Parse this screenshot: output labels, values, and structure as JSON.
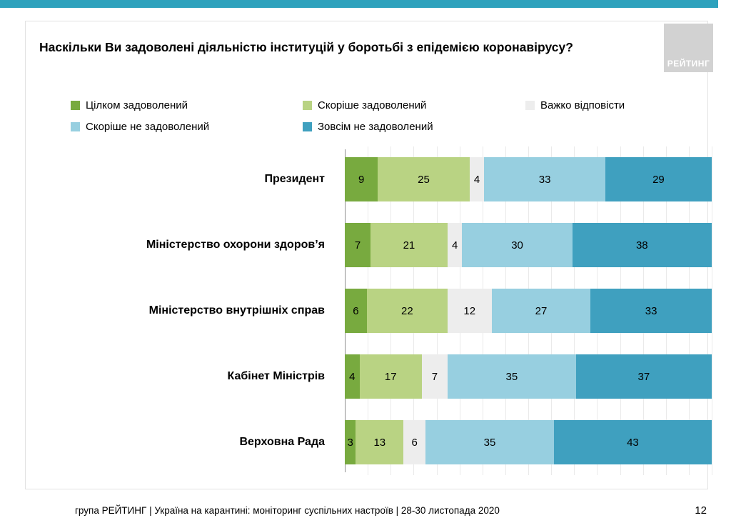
{
  "accent_color": "#2ea2bd",
  "title": "Наскільки Ви задоволені діяльністю інституцій у боротьбі з епідемією коронавірусу?",
  "logo_text": "РЕЙТИНГ",
  "chart_data": {
    "type": "bar",
    "variant": "horizontal-stacked-100",
    "title": "Наскільки Ви задоволені діяльністю інституцій у боротьбі з епідемією коронавірусу?",
    "xlim": [
      0,
      100
    ],
    "grid": "vertical-light",
    "legend_position": "top",
    "categories": [
      "Президент",
      "Міністерство охорони здоров’я",
      "Міністерство внутрішніх справ",
      "Кабінет Міністрів",
      "Верховна Рада"
    ],
    "series": [
      {
        "name": "Цілком задоволений",
        "color": "#78aa3f",
        "values": [
          9,
          7,
          6,
          4,
          3
        ]
      },
      {
        "name": "Скоріше задоволений",
        "color": "#b9d383",
        "values": [
          25,
          21,
          22,
          17,
          13
        ]
      },
      {
        "name": "Важко відповісти",
        "color": "#ededed",
        "values": [
          4,
          4,
          12,
          7,
          6
        ]
      },
      {
        "name": "Скоріше не задоволений",
        "color": "#97cfe0",
        "values": [
          33,
          30,
          27,
          35,
          35
        ]
      },
      {
        "name": "Зовсім не задоволений",
        "color": "#3fa0bf",
        "values": [
          29,
          38,
          33,
          37,
          43
        ]
      }
    ]
  },
  "footer": {
    "source": "група РЕЙТИНГ | Україна на карантині: моніторинг суспільних настроїв | 28-30 листопада 2020",
    "page_number": "12"
  }
}
